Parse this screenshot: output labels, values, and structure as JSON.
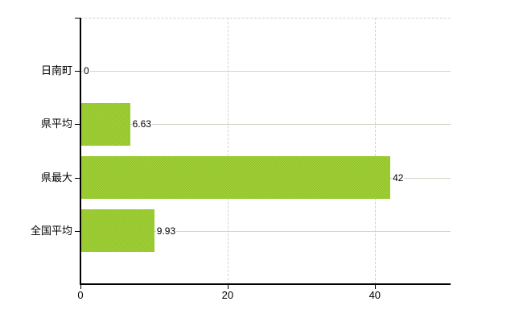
{
  "chart_data": {
    "type": "bar",
    "orientation": "horizontal",
    "categories": [
      "日南町",
      "県平均",
      "県最大",
      "全国平均"
    ],
    "values": [
      0,
      6.63,
      42,
      9.93
    ],
    "value_labels": [
      "0",
      "6.63",
      "42",
      "9.93"
    ],
    "x_ticks": [
      0,
      20,
      40
    ],
    "x_tick_labels": [
      "0",
      "20",
      "40"
    ],
    "xlim": [
      0,
      50.3
    ],
    "grid": "on",
    "legend": "none",
    "bar_color": "#9cc832"
  },
  "colors": {
    "background": "#ffffff",
    "bar_fill": "#9cc832",
    "bar_fill_light": "#a6d43c",
    "bar_fill_dark": "#8fc028",
    "axis": "#000000",
    "h_gridline": "#ccd6c9",
    "v_gridline": "#d2d2d2",
    "text": "#000000"
  }
}
